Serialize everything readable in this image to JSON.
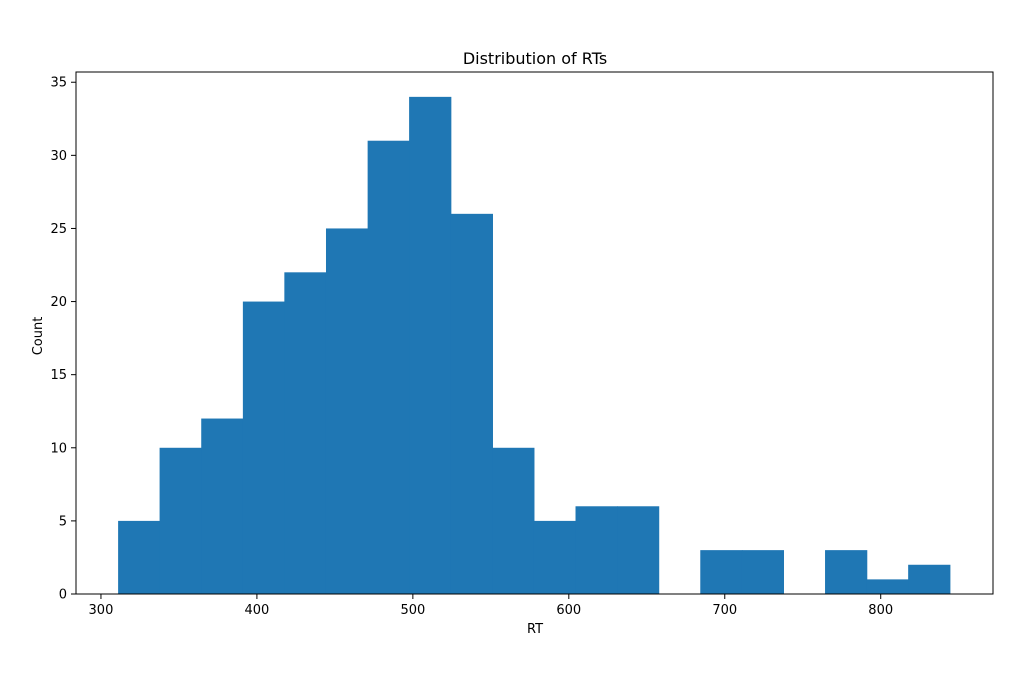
{
  "chart_data": {
    "type": "bar",
    "title": "Distribution of RTs",
    "xlabel": "RT",
    "ylabel": "Count",
    "xlim": [
      284,
      872
    ],
    "ylim": [
      0,
      35.7
    ],
    "x_ticks": [
      300,
      400,
      500,
      600,
      700,
      800
    ],
    "y_ticks": [
      0,
      5,
      10,
      15,
      20,
      25,
      30,
      35
    ],
    "grid": false,
    "bar_color": "#1f77b4",
    "bins": [
      {
        "x0": 311.0,
        "x1": 337.6,
        "count": 5
      },
      {
        "x0": 337.6,
        "x1": 364.3,
        "count": 10
      },
      {
        "x0": 364.3,
        "x1": 391.0,
        "count": 12
      },
      {
        "x0": 391.0,
        "x1": 417.6,
        "count": 20
      },
      {
        "x0": 417.6,
        "x1": 444.3,
        "count": 22
      },
      {
        "x0": 444.3,
        "x1": 471.0,
        "count": 25
      },
      {
        "x0": 471.0,
        "x1": 497.6,
        "count": 31
      },
      {
        "x0": 497.6,
        "x1": 524.3,
        "count": 34
      },
      {
        "x0": 524.3,
        "x1": 551.0,
        "count": 26
      },
      {
        "x0": 551.0,
        "x1": 577.6,
        "count": 10
      },
      {
        "x0": 577.6,
        "x1": 604.3,
        "count": 5
      },
      {
        "x0": 604.3,
        "x1": 631.0,
        "count": 6
      },
      {
        "x0": 631.0,
        "x1": 657.6,
        "count": 6
      },
      {
        "x0": 657.6,
        "x1": 684.3,
        "count": 0
      },
      {
        "x0": 684.3,
        "x1": 711.0,
        "count": 3
      },
      {
        "x0": 711.0,
        "x1": 737.6,
        "count": 3
      },
      {
        "x0": 737.6,
        "x1": 764.3,
        "count": 0
      },
      {
        "x0": 764.3,
        "x1": 791.0,
        "count": 3
      },
      {
        "x0": 791.0,
        "x1": 817.6,
        "count": 1
      },
      {
        "x0": 817.6,
        "x1": 844.3,
        "count": 2
      }
    ]
  }
}
